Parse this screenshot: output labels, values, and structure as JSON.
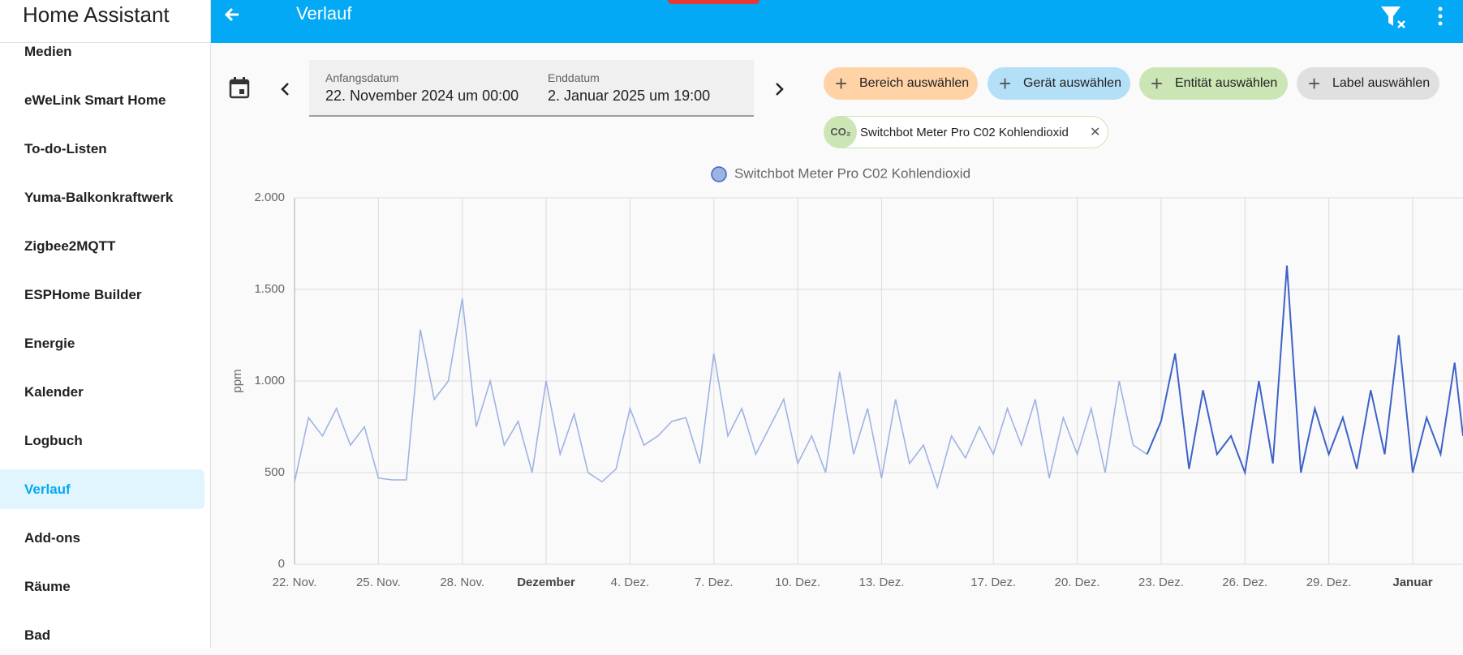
{
  "sidebar": {
    "title": "Home Assistant",
    "items": [
      {
        "label": "Medien"
      },
      {
        "label": "eWeLink Smart Home"
      },
      {
        "label": "To-do-Listen"
      },
      {
        "label": "Yuma-Balkonkraftwerk"
      },
      {
        "label": "Zigbee2MQTT"
      },
      {
        "label": "ESPHome Builder"
      },
      {
        "label": "Energie"
      },
      {
        "label": "Kalender"
      },
      {
        "label": "Logbuch"
      },
      {
        "label": "Verlauf",
        "selected": true
      },
      {
        "label": "Add-ons"
      },
      {
        "label": "Räume"
      },
      {
        "label": "Bad"
      }
    ]
  },
  "header": {
    "title": "Verlauf"
  },
  "date_range": {
    "start_label": "Anfangsdatum",
    "start": "22. November 2024 um 00:00",
    "end_label": "Enddatum",
    "end": "2. Januar 2025 um 19:00"
  },
  "filters": [
    {
      "label": "Bereich auswählen",
      "color": "#ffd3a6"
    },
    {
      "label": "Gerät auswählen",
      "color": "#b3dff7"
    },
    {
      "label": "Entität auswählen",
      "color": "#cbe6b4"
    },
    {
      "label": "Label auswählen",
      "color": "#e0e0e0"
    }
  ],
  "selected_entities": [
    {
      "icon": "CO₂",
      "label": "Switchbot Meter Pro C02 Kohlendioxid"
    }
  ],
  "chart_data": {
    "type": "line",
    "y_label": "ppm",
    "xlim": [
      0,
      41.8
    ],
    "ylim": [
      0,
      2000
    ],
    "yticks": [
      0,
      500,
      {
        "value": 1000,
        "label": "1.000"
      },
      {
        "value": 1500,
        "label": "1.500"
      },
      {
        "value": 2000,
        "label": "2.000"
      }
    ],
    "xticks": [
      {
        "value": 0,
        "label": "22. Nov."
      },
      {
        "value": 3,
        "label": "25. Nov."
      },
      {
        "value": 6,
        "label": "28. Nov."
      },
      {
        "value": 9,
        "label": "Dezember",
        "bold": true
      },
      {
        "value": 12,
        "label": "4. Dez."
      },
      {
        "value": 15,
        "label": "7. Dez."
      },
      {
        "value": 18,
        "label": "10. Dez."
      },
      {
        "value": 21,
        "label": "13. Dez."
      },
      {
        "value": 25,
        "label": "17. Dez."
      },
      {
        "value": 28,
        "label": "20. Dez."
      },
      {
        "value": 31,
        "label": "23. Dez."
      },
      {
        "value": 34,
        "label": "26. Dez."
      },
      {
        "value": 37,
        "label": "29. Dez."
      },
      {
        "value": 40,
        "label": "Januar",
        "bold": true
      }
    ],
    "grid": true,
    "x": [
      0,
      0.5,
      1,
      1.5,
      2,
      2.5,
      3,
      3.5,
      4,
      4.5,
      5,
      5.5,
      6,
      6.5,
      7,
      7.5,
      8,
      8.5,
      9,
      9.5,
      10,
      10.5,
      11,
      11.5,
      12,
      12.5,
      13,
      13.5,
      14,
      14.5,
      15,
      15.5,
      16,
      16.5,
      17,
      17.5,
      18,
      18.5,
      19,
      19.5,
      20,
      20.5,
      21,
      21.5,
      22,
      22.5,
      23,
      23.5,
      24,
      24.5,
      25,
      25.5,
      26,
      26.5,
      27,
      27.5,
      28,
      28.5,
      29,
      29.5,
      30,
      30.5,
      31,
      31.5,
      32,
      32.5,
      33,
      33.5,
      34,
      34.5,
      35,
      35.5,
      36,
      36.5,
      37,
      37.5,
      38,
      38.5,
      39,
      39.5,
      40,
      40.5,
      41,
      41.5,
      41.8
    ],
    "series": [
      {
        "name": "Switchbot Meter Pro C02 Kohlendioxid",
        "color": "#9fb3e3",
        "highlight": {
          "from": 31,
          "color": "#3d62c9"
        },
        "values": [
          450,
          800,
          700,
          850,
          650,
          750,
          470,
          460,
          460,
          1280,
          900,
          1000,
          1450,
          750,
          1000,
          650,
          780,
          500,
          1000,
          600,
          820,
          500,
          450,
          520,
          850,
          650,
          700,
          780,
          800,
          550,
          1150,
          700,
          850,
          600,
          750,
          900,
          550,
          700,
          500,
          1050,
          600,
          850,
          470,
          900,
          550,
          650,
          420,
          700,
          580,
          750,
          600,
          850,
          650,
          900,
          470,
          800,
          600,
          850,
          500,
          1000,
          650,
          600,
          780,
          1150,
          520,
          950,
          600,
          700,
          500,
          1000,
          550,
          1630,
          500,
          850,
          600,
          800,
          520,
          950,
          600,
          1250,
          500,
          800,
          600,
          1100,
          700
        ]
      }
    ]
  }
}
